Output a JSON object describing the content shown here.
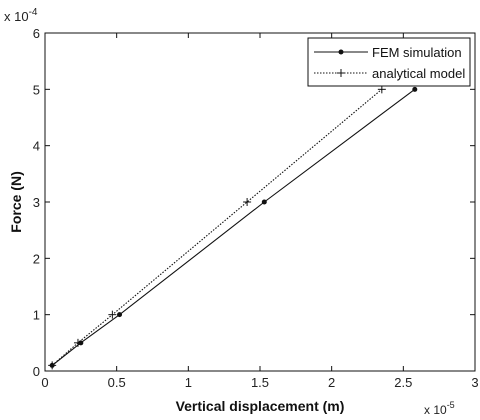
{
  "chart_data": {
    "type": "line",
    "title": "",
    "xlabel": "Vertical displacement (m)",
    "ylabel": "Force (N)",
    "x_multiplier": "x 10",
    "x_exponent": "-5",
    "y_multiplier": "x 10",
    "y_exponent": "-4",
    "xlim": [
      0,
      3
    ],
    "ylim": [
      0,
      6
    ],
    "x_ticks": [
      "0",
      "0.5",
      "1",
      "1.5",
      "2",
      "2.5",
      "3"
    ],
    "y_ticks": [
      "0",
      "1",
      "2",
      "3",
      "4",
      "5",
      "6"
    ],
    "legend_position": "top-right",
    "grid": false,
    "series": [
      {
        "name": "FEM simulation",
        "style": "solid",
        "marker": "dot",
        "color": "#111111",
        "x": [
          0.05,
          0.25,
          0.52,
          1.53,
          2.58
        ],
        "y": [
          0.1,
          0.5,
          1.0,
          3.0,
          5.0
        ]
      },
      {
        "name": "analytical model",
        "style": "dotted",
        "marker": "plus",
        "color": "#111111",
        "x": [
          0.05,
          0.23,
          0.47,
          1.41,
          2.35
        ],
        "y": [
          0.1,
          0.5,
          1.0,
          3.0,
          5.0
        ]
      }
    ]
  }
}
